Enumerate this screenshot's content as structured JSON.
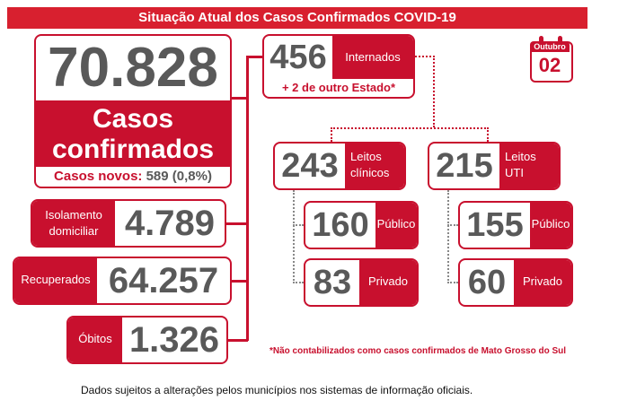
{
  "title": "Situação Atual dos Casos Confirmados COVID-19",
  "date": {
    "month": "Outubro",
    "day": "02"
  },
  "total": {
    "value": "70.828",
    "label_line1": "Casos",
    "label_line2": "confirmados",
    "new_label": "Casos novos:",
    "new_value": "589 (0,8%)"
  },
  "isolamento": {
    "label_line1": "Isolamento",
    "label_line2": "domiciliar",
    "value": "4.789"
  },
  "recuperados": {
    "label": "Recuperados",
    "value": "64.257"
  },
  "obitos": {
    "label": "Óbitos",
    "value": "1.326"
  },
  "internados": {
    "value": "456",
    "label": "Internados",
    "extra": "+ 2 de outro Estado*"
  },
  "clinicos": {
    "value": "243",
    "label_line1": "Leitos",
    "label_line2": "clínicos",
    "publico_value": "160",
    "publico_label": "Público",
    "privado_value": "83",
    "privado_label": "Privado"
  },
  "uti": {
    "value": "215",
    "label_line1": "Leitos",
    "label_line2": "UTI",
    "publico_value": "155",
    "publico_label": "Público",
    "privado_value": "60",
    "privado_label": "Privado"
  },
  "footnote": "*Não contabilizados como casos confirmados de Mato Grosso do Sul",
  "disclaimer": "Dados sujeitos a alterações pelos municípios nos sistemas de informação oficiais.",
  "colors": {
    "accent": "#c8102e",
    "number_gray": "#595959"
  }
}
